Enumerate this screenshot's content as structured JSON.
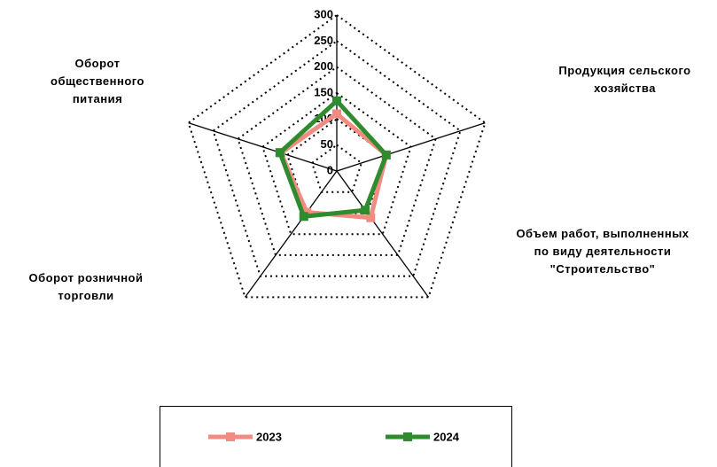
{
  "chart_data": {
    "type": "radar",
    "categories": [
      null,
      "Продукция сельского хозяйства",
      "Объем работ, выполненных по виду деятельности \"Строительство\"",
      "Оборот розничной торговли",
      "Оборот общественного питания"
    ],
    "series": [
      {
        "name": "2023",
        "color": "#f28b82",
        "values": [
          110,
          100,
          111,
          98,
          113
        ]
      },
      {
        "name": "2024",
        "color": "#2e8b2e",
        "values": [
          135,
          100,
          93,
          108,
          115
        ]
      }
    ],
    "rlim": [
      0,
      300
    ],
    "rticks": [
      0,
      50,
      100,
      150,
      200,
      250,
      300
    ],
    "grid": true,
    "legend": "bottom"
  }
}
